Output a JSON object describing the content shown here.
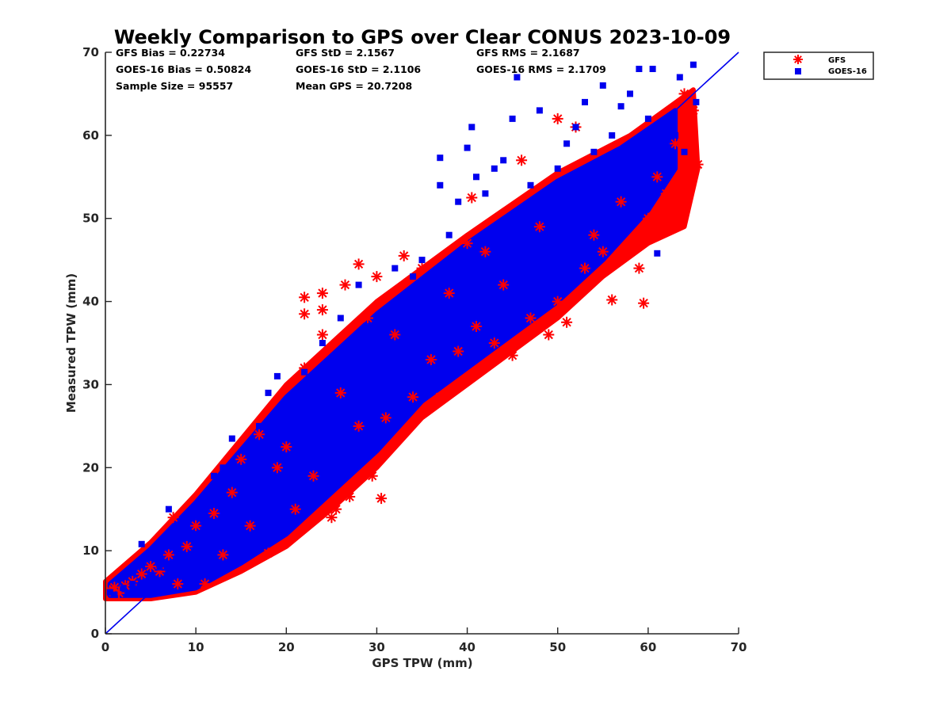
{
  "chart_data": {
    "type": "scatter",
    "title": "Weekly Comparison to GPS over Clear CONUS 2023-10-09",
    "xlabel": "GPS TPW (mm)",
    "ylabel": "Measured TPW (mm)",
    "xlim": [
      0,
      70
    ],
    "ylim": [
      0,
      70
    ],
    "xticks": [
      "0",
      "10",
      "20",
      "30",
      "40",
      "50",
      "60",
      "70"
    ],
    "yticks": [
      "0",
      "10",
      "20",
      "30",
      "40",
      "50",
      "60",
      "70"
    ],
    "grid": false,
    "legend_position": "outside-top-right",
    "reference_line": {
      "from": [
        0,
        0
      ],
      "to": [
        70,
        70
      ],
      "color": "#0000ee"
    },
    "stats": [
      "GFS Bias = 0.22734",
      "GFS StD = 2.1567",
      "GFS RMS = 2.1687",
      "GOES-16 Bias = 0.50824",
      "GOES-16 StD = 2.1106",
      "GOES-16 RMS = 2.1709",
      "Sample Size = 95557",
      "Mean GPS = 20.7208"
    ],
    "series": [
      {
        "name": "GFS",
        "marker": "asterisk",
        "color": "#ff0000",
        "points": [
          [
            0.5,
            5.2
          ],
          [
            1,
            5.6
          ],
          [
            1.5,
            4.9
          ],
          [
            2.2,
            5.8
          ],
          [
            3,
            6.3
          ],
          [
            4,
            7.2
          ],
          [
            5,
            8.1
          ],
          [
            6,
            7.5
          ],
          [
            7,
            9.5
          ],
          [
            7.5,
            14
          ],
          [
            8,
            6
          ],
          [
            9,
            10.5
          ],
          [
            10,
            13
          ],
          [
            11,
            6
          ],
          [
            12,
            14.5
          ],
          [
            13,
            9.5
          ],
          [
            14,
            17
          ],
          [
            15,
            21
          ],
          [
            16,
            13
          ],
          [
            17,
            24
          ],
          [
            18,
            9.7
          ],
          [
            19,
            20
          ],
          [
            20,
            22.5
          ],
          [
            21,
            15
          ],
          [
            22,
            40.5
          ],
          [
            22,
            38.5
          ],
          [
            22,
            32
          ],
          [
            23,
            19
          ],
          [
            24,
            41
          ],
          [
            24,
            39
          ],
          [
            24,
            36
          ],
          [
            25,
            14
          ],
          [
            25.5,
            15
          ],
          [
            26,
            29
          ],
          [
            26.5,
            42
          ],
          [
            27,
            16.5
          ],
          [
            28,
            44.5
          ],
          [
            28,
            25
          ],
          [
            29,
            38
          ],
          [
            29.5,
            19
          ],
          [
            30,
            43
          ],
          [
            30.5,
            16.3
          ],
          [
            31,
            26
          ],
          [
            32,
            36
          ],
          [
            33,
            45.5
          ],
          [
            34,
            28.5
          ],
          [
            35,
            44
          ],
          [
            36,
            33
          ],
          [
            37,
            28.5
          ],
          [
            38,
            41
          ],
          [
            39,
            34
          ],
          [
            40,
            47
          ],
          [
            40.5,
            52.5
          ],
          [
            41,
            37
          ],
          [
            42,
            46
          ],
          [
            43,
            35
          ],
          [
            44,
            42
          ],
          [
            45,
            33.5
          ],
          [
            46,
            57
          ],
          [
            47,
            38
          ],
          [
            48,
            49
          ],
          [
            49,
            36
          ],
          [
            50,
            62
          ],
          [
            50,
            40
          ],
          [
            51,
            37.5
          ],
          [
            52,
            61
          ],
          [
            53,
            44
          ],
          [
            54,
            48
          ],
          [
            55,
            46
          ],
          [
            56,
            40.2
          ],
          [
            57,
            52
          ],
          [
            58,
            47
          ],
          [
            59,
            44
          ],
          [
            59.5,
            39.8
          ],
          [
            60,
            50
          ],
          [
            61,
            55
          ],
          [
            62,
            53
          ],
          [
            62.5,
            49
          ],
          [
            63,
            59
          ],
          [
            64,
            51
          ],
          [
            64,
            65
          ],
          [
            65,
            63
          ],
          [
            65.5,
            56.5
          ]
        ]
      },
      {
        "name": "GOES-16",
        "marker": "square",
        "color": "#0000ee",
        "points": [
          [
            0.5,
            5
          ],
          [
            1,
            4.7
          ],
          [
            2,
            5.5
          ],
          [
            3,
            6
          ],
          [
            4,
            10.8
          ],
          [
            5,
            7
          ],
          [
            6,
            8
          ],
          [
            7,
            15
          ],
          [
            8,
            9
          ],
          [
            9,
            14
          ],
          [
            10,
            12
          ],
          [
            11,
            16
          ],
          [
            12,
            19
          ],
          [
            13,
            20
          ],
          [
            14,
            23.5
          ],
          [
            15,
            18
          ],
          [
            16,
            22
          ],
          [
            17,
            25
          ],
          [
            18,
            29
          ],
          [
            19,
            31
          ],
          [
            20,
            26
          ],
          [
            21,
            27
          ],
          [
            22,
            31.5
          ],
          [
            23,
            28
          ],
          [
            24,
            35
          ],
          [
            25,
            30
          ],
          [
            26,
            38
          ],
          [
            27,
            33
          ],
          [
            28,
            42
          ],
          [
            29,
            37
          ],
          [
            30,
            28
          ],
          [
            31,
            38
          ],
          [
            32,
            44
          ],
          [
            33,
            36
          ],
          [
            34,
            43
          ],
          [
            35,
            45
          ],
          [
            36,
            40
          ],
          [
            37,
            54
          ],
          [
            37,
            57.3
          ],
          [
            38,
            48
          ],
          [
            39,
            52
          ],
          [
            40,
            58.5
          ],
          [
            40.5,
            61
          ],
          [
            41,
            55
          ],
          [
            42,
            53
          ],
          [
            43,
            56
          ],
          [
            44,
            57
          ],
          [
            45,
            62
          ],
          [
            45.5,
            67
          ],
          [
            46,
            47
          ],
          [
            47,
            54
          ],
          [
            48,
            63
          ],
          [
            49,
            51
          ],
          [
            50,
            56
          ],
          [
            51,
            59
          ],
          [
            52,
            61
          ],
          [
            53,
            64
          ],
          [
            54,
            58
          ],
          [
            55,
            66
          ],
          [
            56,
            60
          ],
          [
            57,
            63.5
          ],
          [
            58,
            65
          ],
          [
            59,
            68
          ],
          [
            60,
            62
          ],
          [
            60.5,
            68
          ],
          [
            61,
            45.8
          ],
          [
            62,
            56
          ],
          [
            63,
            60
          ],
          [
            63.5,
            67
          ],
          [
            64,
            58
          ],
          [
            65,
            68.5
          ],
          [
            65.3,
            64
          ]
        ]
      }
    ]
  },
  "legend": {
    "items": [
      {
        "label": "GFS",
        "color": "#ff0000"
      },
      {
        "label": "GOES-16",
        "color": "#0000ee"
      }
    ]
  }
}
